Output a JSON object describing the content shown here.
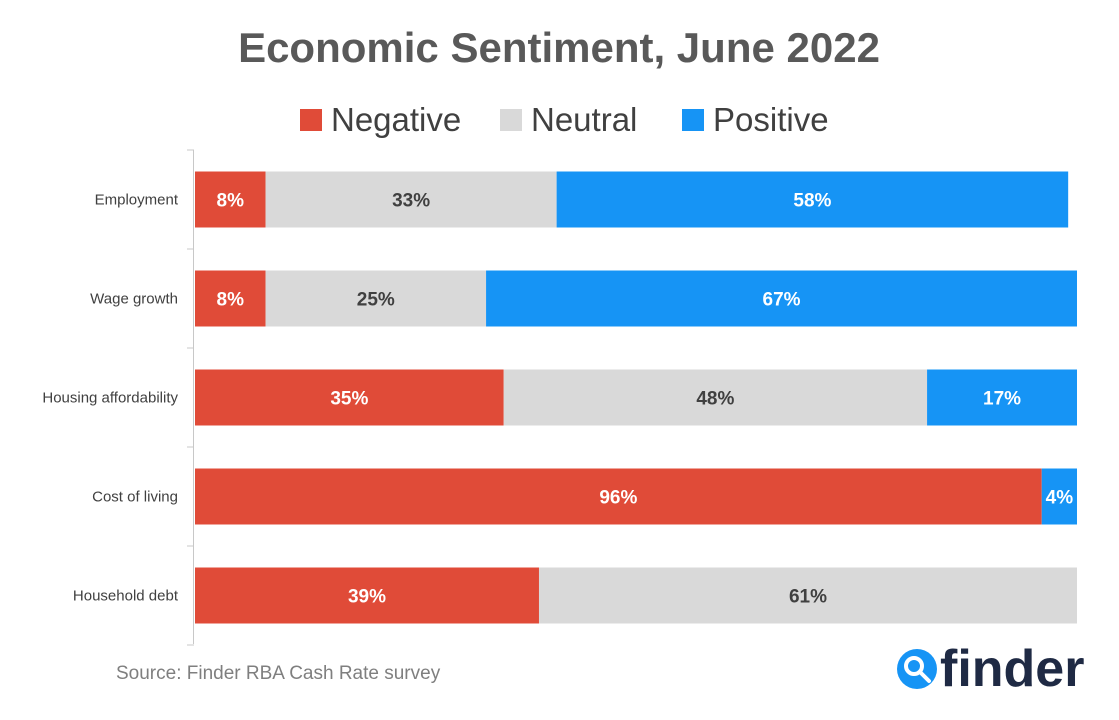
{
  "colors": {
    "negative": "#E04B38",
    "neutral": "#D9D9D9",
    "positive": "#1694F5",
    "title": "#595959",
    "text": "#404040",
    "axis": "#C8C8C8",
    "logo_ink": "#1F2A44",
    "logo_accent": "#1694F5"
  },
  "source": "Source: Finder RBA Cash Rate survey",
  "logo": {
    "text": "finder",
    "icon": "magnifier-icon"
  },
  "chart_data": {
    "type": "bar",
    "orientation": "horizontal",
    "stacked": true,
    "title": "Economic Sentiment, June 2022",
    "legend_position": "top",
    "grid": false,
    "xlim": [
      0,
      100
    ],
    "categories": [
      "Employment",
      "Wage growth",
      "Housing affordability",
      "Cost of living",
      "Household debt"
    ],
    "series": [
      {
        "name": "Negative",
        "color": "#E04B38",
        "label_color": "#FFFFFF",
        "values": [
          8,
          8,
          35,
          96,
          39
        ],
        "labels": [
          "8%",
          "8%",
          "35%",
          "96%",
          "39%"
        ]
      },
      {
        "name": "Neutral",
        "color": "#D9D9D9",
        "label_color": "#404040",
        "values": [
          33,
          25,
          48,
          0,
          61
        ],
        "labels": [
          "33%",
          "25%",
          "48%",
          "",
          "61%"
        ]
      },
      {
        "name": "Positive",
        "color": "#1694F5",
        "label_color": "#FFFFFF",
        "values": [
          58,
          67,
          17,
          4,
          0
        ],
        "labels": [
          "58%",
          "67%",
          "17%",
          "4%",
          ""
        ]
      }
    ]
  }
}
